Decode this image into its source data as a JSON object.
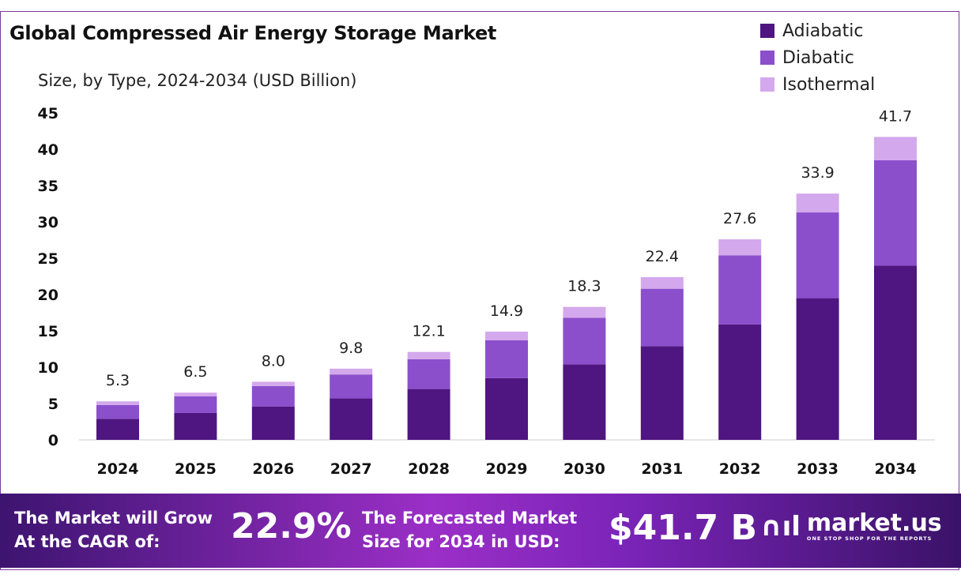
{
  "chart_data": {
    "type": "bar",
    "stacked": true,
    "title": "Global Compressed Air Energy Storage Market",
    "subtitle": "Size, by Type, 2024-2034 (USD Billion)",
    "xlabel": "",
    "ylabel": "",
    "ylim": [
      0,
      45
    ],
    "yticks": [
      "0",
      "5",
      "10",
      "15",
      "20",
      "25",
      "30",
      "35",
      "40",
      "45"
    ],
    "categories": [
      "2024",
      "2025",
      "2026",
      "2027",
      "2028",
      "2029",
      "2030",
      "2031",
      "2032",
      "2033",
      "2034"
    ],
    "series": [
      {
        "name": "Adiabatic",
        "color": "#4f1580",
        "values": [
          2.9,
          3.7,
          4.6,
          5.7,
          7.0,
          8.5,
          10.4,
          12.9,
          15.9,
          19.5,
          24.0
        ]
      },
      {
        "name": "Diabatic",
        "color": "#8b4fcc",
        "values": [
          1.9,
          2.3,
          2.8,
          3.3,
          4.1,
          5.2,
          6.4,
          7.9,
          9.5,
          11.8,
          14.5
        ]
      },
      {
        "name": "Isothermal",
        "color": "#d4a8ec",
        "values": [
          0.5,
          0.5,
          0.6,
          0.8,
          1.0,
          1.2,
          1.5,
          1.6,
          2.2,
          2.6,
          3.2
        ]
      }
    ],
    "totals": [
      "5.3",
      "6.5",
      "8.0",
      "9.8",
      "12.1",
      "14.9",
      "18.3",
      "22.4",
      "27.6",
      "33.9",
      "41.7"
    ],
    "grid": false,
    "legend": "top-right"
  },
  "footer": {
    "cagr_label_1": "The Market will Grow",
    "cagr_label_2": "At the CAGR of:",
    "cagr_value": "22.9%",
    "forecast_label_1": "The Forecasted Market",
    "forecast_label_2": "Size for 2034 in USD:",
    "forecast_value": "$41.7 B",
    "logo_name": "market.us",
    "logo_tagline": "ONE STOP SHOP FOR THE REPORTS"
  }
}
